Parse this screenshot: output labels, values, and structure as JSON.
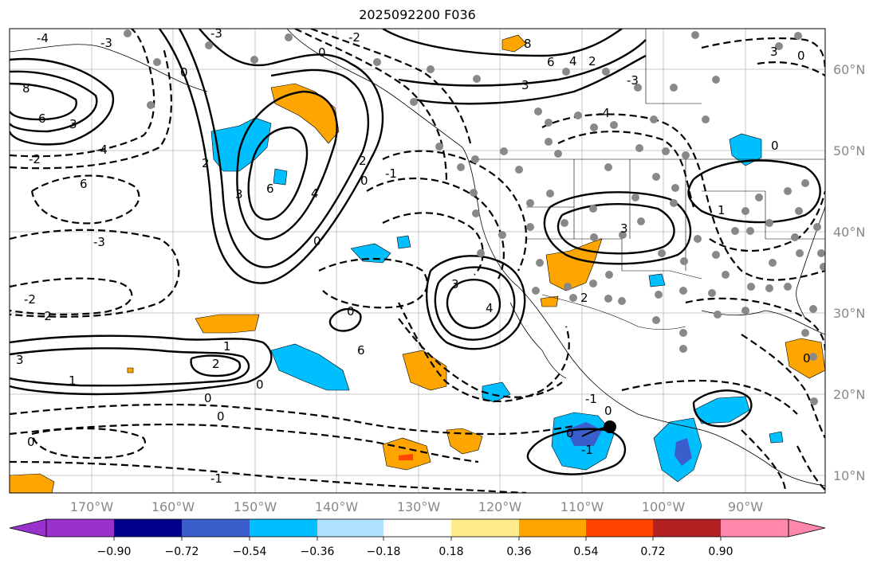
{
  "title": "2025092200 F036",
  "longitude_labels": [
    "170°W",
    "160°W",
    "150°W",
    "140°W",
    "130°W",
    "120°W",
    "110°W",
    "100°W",
    "90°W"
  ],
  "latitude_labels": [
    "60°N",
    "50°N",
    "40°N",
    "30°N",
    "20°N",
    "10°N"
  ],
  "colorbar": {
    "ticks": [
      "−0.90",
      "−0.72",
      "−0.54",
      "−0.36",
      "−0.18",
      "0.18",
      "0.36",
      "0.54",
      "0.72",
      "0.90"
    ],
    "colors": [
      "#9932cc",
      "#00008b",
      "#3a5fcd",
      "#00bfff",
      "#b0e2ff",
      "#ffffff",
      "#ffec8b",
      "#ffa500",
      "#ff4500",
      "#b22222",
      "#ff88aa"
    ]
  },
  "contour_labels": [
    "-4",
    "-3",
    "-2",
    "-1",
    "0",
    "1",
    "2",
    "3",
    "4",
    "6",
    "8"
  ],
  "marker": "storm-center"
}
